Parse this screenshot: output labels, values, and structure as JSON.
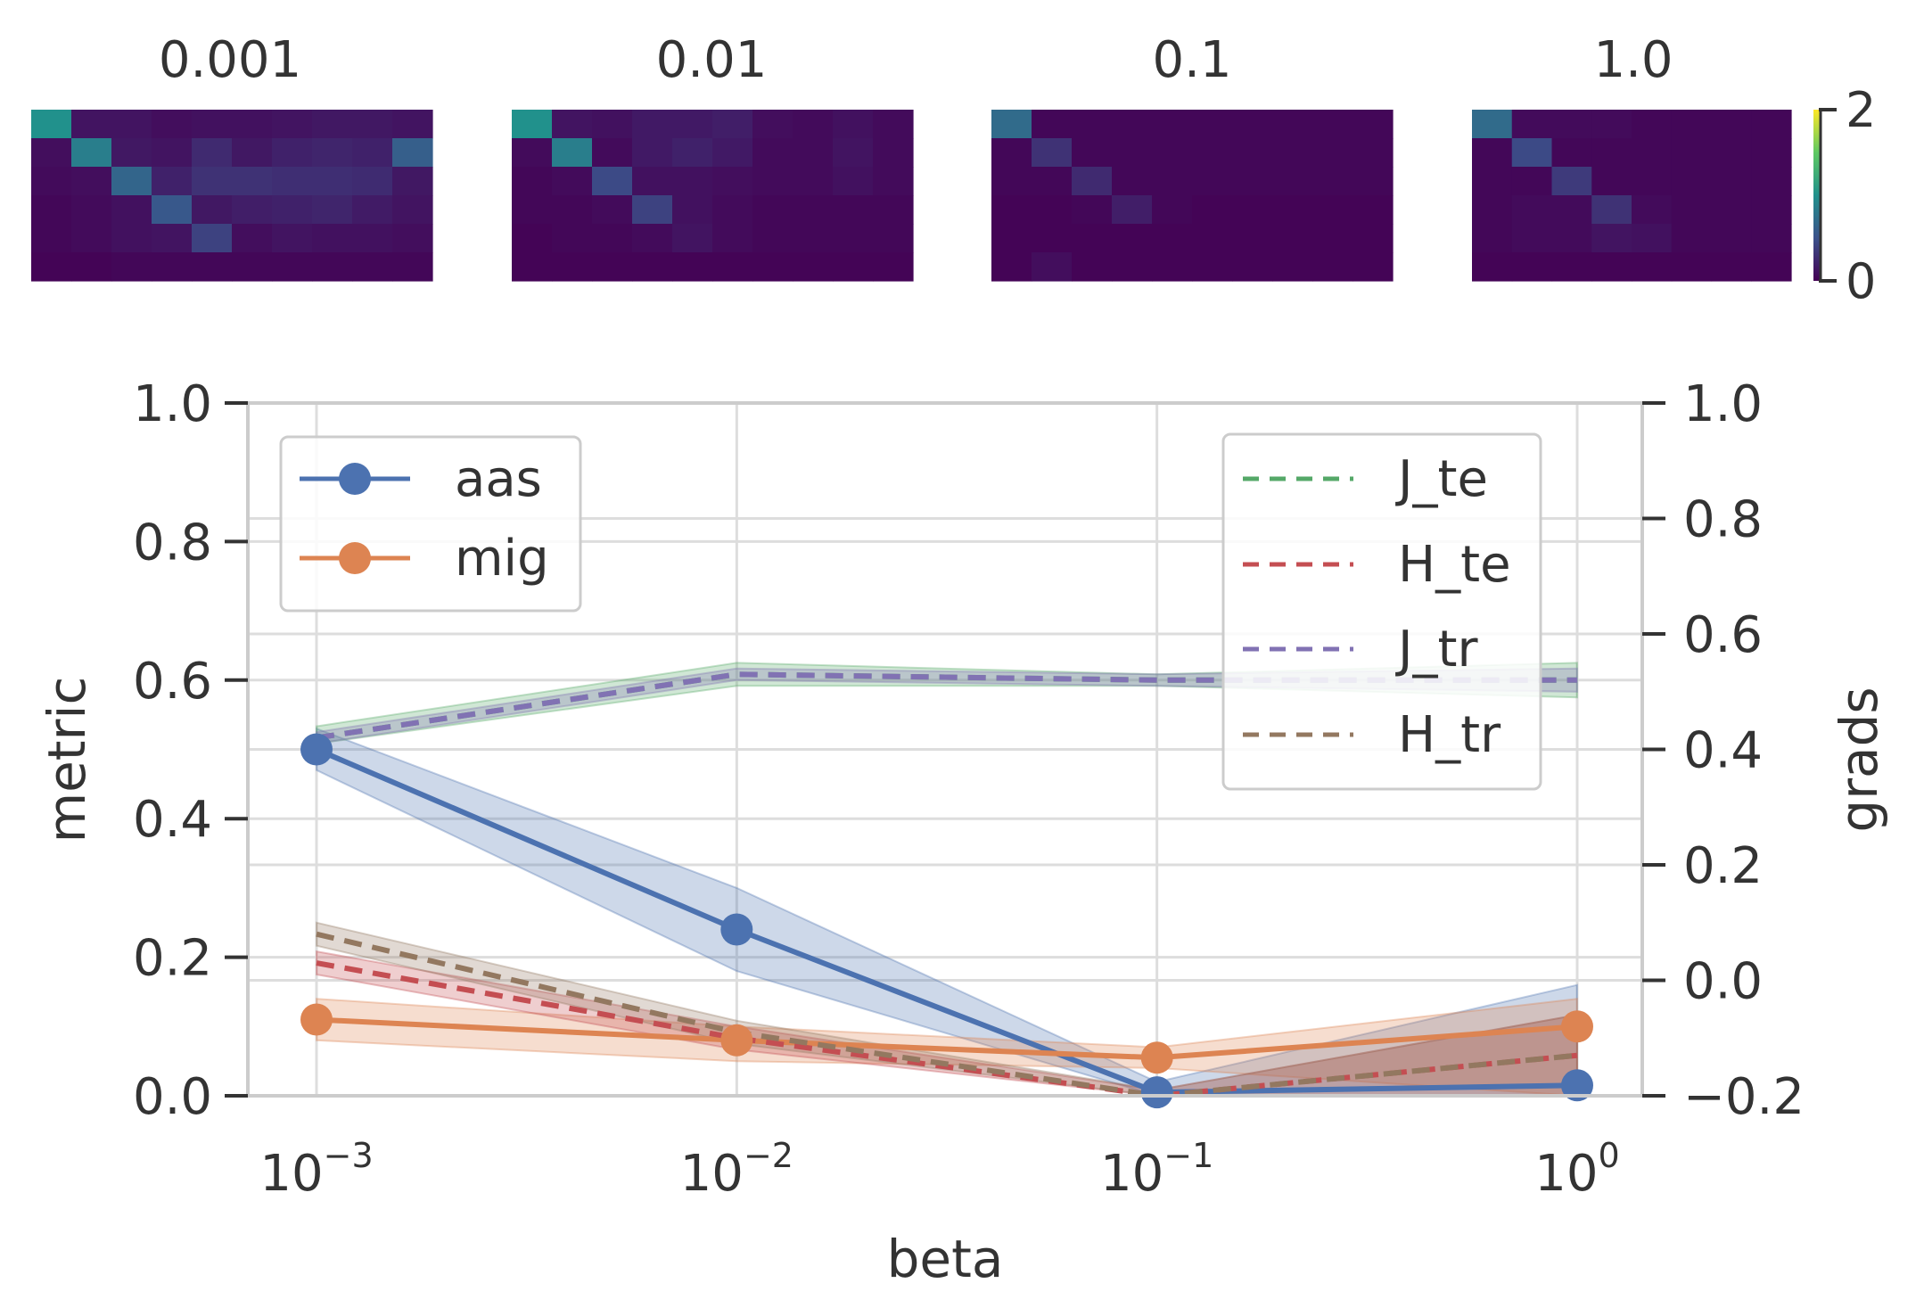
{
  "chart_data": [
    {
      "type": "heatmap",
      "titles": [
        "0.001",
        "0.01",
        "0.1",
        "1.0"
      ],
      "colormap": "viridis",
      "colorbar": {
        "min": 0,
        "max": 2,
        "tick_labels": [
          "2",
          "0"
        ]
      },
      "matrices": [
        [
          [
            1.0,
            0.12,
            0.12,
            0.08,
            0.1,
            0.1,
            0.12,
            0.14,
            0.14,
            0.12
          ],
          [
            0.08,
            0.85,
            0.14,
            0.12,
            0.25,
            0.14,
            0.2,
            0.22,
            0.2,
            0.6
          ],
          [
            0.06,
            0.08,
            0.65,
            0.2,
            0.3,
            0.3,
            0.28,
            0.28,
            0.26,
            0.14
          ],
          [
            0.04,
            0.06,
            0.1,
            0.55,
            0.14,
            0.18,
            0.2,
            0.22,
            0.16,
            0.12
          ],
          [
            0.04,
            0.06,
            0.1,
            0.12,
            0.4,
            0.08,
            0.12,
            0.1,
            0.1,
            0.08
          ],
          [
            0.02,
            0.02,
            0.04,
            0.04,
            0.04,
            0.04,
            0.04,
            0.04,
            0.04,
            0.04
          ]
        ],
        [
          [
            1.0,
            0.12,
            0.1,
            0.15,
            0.15,
            0.18,
            0.08,
            0.06,
            0.1,
            0.06
          ],
          [
            0.06,
            0.85,
            0.06,
            0.15,
            0.2,
            0.15,
            0.06,
            0.06,
            0.12,
            0.06
          ],
          [
            0.04,
            0.06,
            0.45,
            0.1,
            0.1,
            0.08,
            0.06,
            0.06,
            0.1,
            0.06
          ],
          [
            0.04,
            0.04,
            0.06,
            0.4,
            0.1,
            0.06,
            0.04,
            0.04,
            0.04,
            0.04
          ],
          [
            0.02,
            0.04,
            0.04,
            0.06,
            0.12,
            0.06,
            0.04,
            0.04,
            0.04,
            0.04
          ],
          [
            0.02,
            0.02,
            0.02,
            0.02,
            0.02,
            0.02,
            0.02,
            0.02,
            0.02,
            0.02
          ]
        ],
        [
          [
            0.7,
            0.04,
            0.04,
            0.04,
            0.04,
            0.04,
            0.04,
            0.04,
            0.04,
            0.04
          ],
          [
            0.04,
            0.3,
            0.04,
            0.04,
            0.04,
            0.04,
            0.04,
            0.04,
            0.04,
            0.04
          ],
          [
            0.04,
            0.04,
            0.25,
            0.04,
            0.04,
            0.04,
            0.04,
            0.04,
            0.04,
            0.04
          ],
          [
            0.02,
            0.02,
            0.04,
            0.18,
            0.04,
            0.02,
            0.02,
            0.02,
            0.02,
            0.02
          ],
          [
            0.02,
            0.02,
            0.02,
            0.02,
            0.02,
            0.02,
            0.02,
            0.02,
            0.02,
            0.02
          ],
          [
            0.02,
            0.08,
            0.02,
            0.02,
            0.02,
            0.02,
            0.02,
            0.02,
            0.02,
            0.02
          ]
        ],
        [
          [
            0.7,
            0.06,
            0.06,
            0.06,
            0.04,
            0.04,
            0.04,
            0.04
          ],
          [
            0.04,
            0.45,
            0.04,
            0.04,
            0.04,
            0.04,
            0.04,
            0.04
          ],
          [
            0.04,
            0.04,
            0.35,
            0.04,
            0.04,
            0.04,
            0.04,
            0.04
          ],
          [
            0.04,
            0.06,
            0.06,
            0.3,
            0.06,
            0.04,
            0.04,
            0.04
          ],
          [
            0.04,
            0.06,
            0.06,
            0.12,
            0.1,
            0.04,
            0.04,
            0.04
          ],
          [
            0.02,
            0.02,
            0.02,
            0.02,
            0.02,
            0.02,
            0.02,
            0.02
          ]
        ]
      ]
    },
    {
      "type": "line",
      "xscale": "log",
      "xlabel": "beta",
      "ylabel": "metric",
      "y2label": "grads",
      "x": [
        0.001,
        0.01,
        0.1,
        1.0
      ],
      "xticks": [
        {
          "value": 0.001,
          "base": "10",
          "exp": "−3"
        },
        {
          "value": 0.01,
          "base": "10",
          "exp": "−2"
        },
        {
          "value": 0.1,
          "base": "10",
          "exp": "−1"
        },
        {
          "value": 1.0,
          "base": "10",
          "exp": "0"
        }
      ],
      "ylim": [
        0.0,
        1.0
      ],
      "yticks": [
        "0.0",
        "0.2",
        "0.4",
        "0.6",
        "0.8",
        "1.0"
      ],
      "y2lim": [
        -0.2,
        1.0
      ],
      "y2ticks": [
        "−0.2",
        "0.0",
        "0.2",
        "0.4",
        "0.6",
        "0.8",
        "1.0"
      ],
      "grid": true,
      "legend_left": {
        "position": "top-left",
        "entries": [
          "aas",
          "mig"
        ]
      },
      "legend_right": {
        "position": "top-right",
        "entries": [
          "J_te",
          "H_te",
          "J_tr",
          "H_tr"
        ]
      },
      "series": [
        {
          "name": "aas",
          "axis": "left",
          "color": "#4c72b0",
          "style": "solid",
          "marker": true,
          "values": [
            0.5,
            0.24,
            0.005,
            0.015
          ],
          "lower": [
            0.47,
            0.18,
            0.0,
            0.0
          ],
          "upper": [
            0.53,
            0.3,
            0.02,
            0.16
          ]
        },
        {
          "name": "mig",
          "axis": "left",
          "color": "#dd8452",
          "style": "solid",
          "marker": true,
          "values": [
            0.11,
            0.08,
            0.055,
            0.1
          ],
          "lower": [
            0.08,
            0.05,
            0.04,
            0.0
          ],
          "upper": [
            0.14,
            0.1,
            0.07,
            0.14
          ]
        },
        {
          "name": "J_te",
          "axis": "right",
          "color": "#55a868",
          "style": "dashed",
          "marker": false,
          "values": [
            0.42,
            0.53,
            0.52,
            0.52
          ],
          "lower": [
            0.41,
            0.51,
            0.51,
            0.49
          ],
          "upper": [
            0.44,
            0.55,
            0.53,
            0.55
          ]
        },
        {
          "name": "H_te",
          "axis": "right",
          "color": "#c44e52",
          "style": "dashed",
          "marker": false,
          "values": [
            0.03,
            -0.1,
            -0.2,
            -0.13
          ],
          "lower": [
            0.01,
            -0.12,
            -0.2,
            -0.2
          ],
          "upper": [
            0.05,
            -0.08,
            -0.19,
            -0.06
          ]
        },
        {
          "name": "J_tr",
          "axis": "right",
          "color": "#8172b3",
          "style": "dashed",
          "marker": false,
          "values": [
            0.42,
            0.53,
            0.52,
            0.52
          ],
          "lower": [
            0.41,
            0.52,
            0.51,
            0.5
          ],
          "upper": [
            0.43,
            0.54,
            0.53,
            0.54
          ]
        },
        {
          "name": "H_tr",
          "axis": "right",
          "color": "#937860",
          "style": "dashed",
          "marker": false,
          "values": [
            0.08,
            -0.09,
            -0.2,
            -0.13
          ],
          "lower": [
            0.06,
            -0.11,
            -0.2,
            -0.2
          ],
          "upper": [
            0.1,
            -0.07,
            -0.19,
            -0.06
          ]
        }
      ]
    }
  ]
}
